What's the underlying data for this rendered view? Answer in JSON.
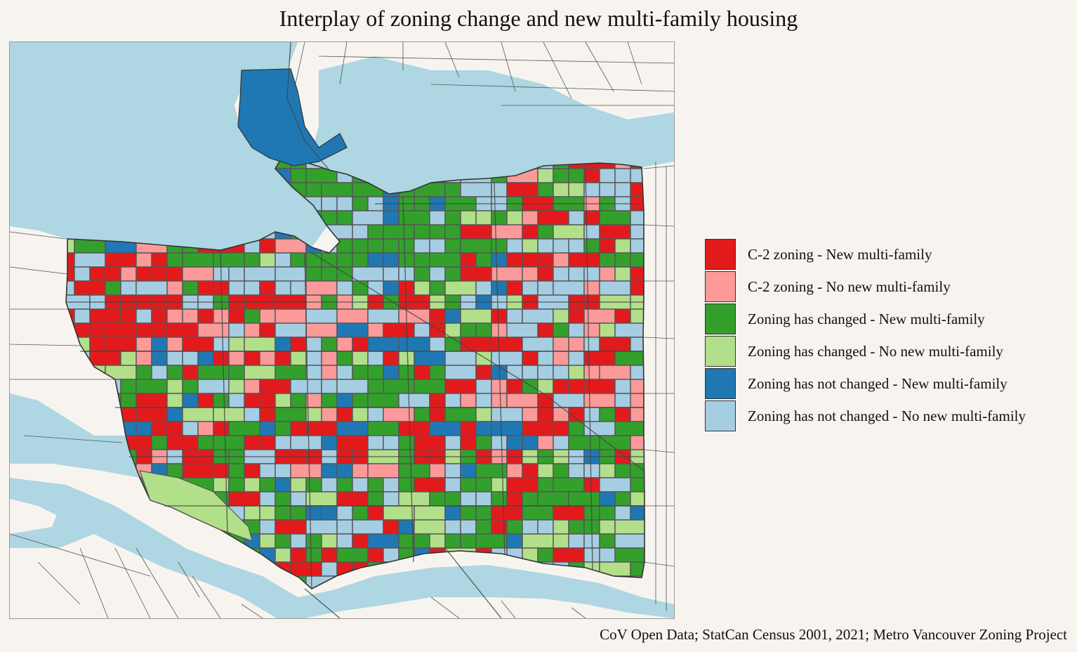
{
  "title": "Interplay of zoning change and new multi-family housing",
  "caption": "CoV Open Data; StatCan Census 2001, 2021; Metro Vancouver Zoning Project",
  "colors": {
    "water": "#aed6e3",
    "land": "#f7f4ef",
    "road": "#444444",
    "boundary": "#555555"
  },
  "legend": [
    {
      "key": "c2_new",
      "label": "C-2 zoning - New multi-family",
      "color": "#e31a1c"
    },
    {
      "key": "c2_none",
      "label": "C-2 zoning - No new multi-family",
      "color": "#fb9a99"
    },
    {
      "key": "changed_new",
      "label": "Zoning has changed - New multi-family",
      "color": "#33a02c"
    },
    {
      "key": "changed_none",
      "label": "Zoning has changed - No new multi-family",
      "color": "#b2df8a"
    },
    {
      "key": "unchanged_new",
      "label": "Zoning has not changed - New multi-family",
      "color": "#1f78b4"
    },
    {
      "key": "unchanged_none",
      "label": "Zoning has not changed - No new multi-family",
      "color": "#a6cee3"
    }
  ]
}
